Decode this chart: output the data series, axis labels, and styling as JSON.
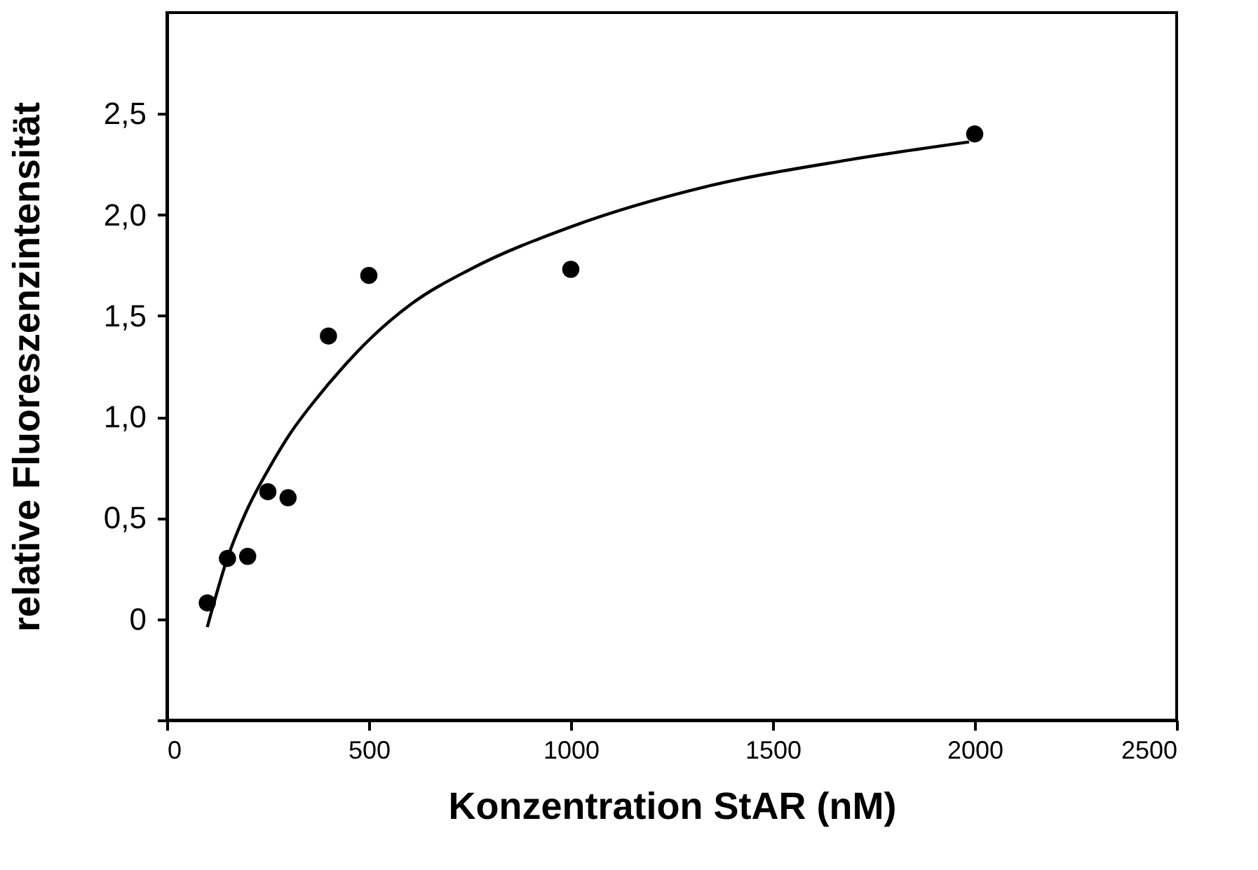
{
  "chart_data": {
    "type": "scatter",
    "xlabel": "Konzentration StAR (nM)",
    "ylabel": "relative Fluoreszenzintensität",
    "xlim": [
      0,
      2500
    ],
    "xticks": [
      0,
      500,
      1000,
      1500,
      2000,
      2500
    ],
    "ylim": [
      -0.5,
      3.0
    ],
    "yticks": [
      {
        "value": -0.5,
        "label": null
      },
      {
        "value": 0,
        "label": "0"
      },
      {
        "value": 0.5,
        "label": "0,5"
      },
      {
        "value": 1.0,
        "label": "1,0"
      },
      {
        "value": 1.5,
        "label": "1,5"
      },
      {
        "value": 2.0,
        "label": "2,0"
      },
      {
        "value": 2.5,
        "label": "2,5"
      }
    ],
    "grid": false,
    "marker": "circle",
    "series": [
      {
        "color": "#000000",
        "x": [
          100,
          150,
          200,
          250,
          300,
          400,
          500,
          1000,
          2000
        ],
        "values": [
          0.08,
          0.3,
          0.31,
          0.63,
          0.6,
          1.4,
          1.7,
          1.73,
          2.4
        ]
      },
      {
        "type": "line",
        "color": "#000000",
        "line_style": "solid",
        "marker": "none",
        "x": [
          100,
          148,
          196,
          257,
          306,
          366,
          438,
          500,
          606,
          751,
          1000,
          1337,
          1684,
          1986
        ],
        "values": [
          -0.04,
          0.29,
          0.53,
          0.76,
          0.92,
          1.08,
          1.25,
          1.38,
          1.56,
          1.73,
          1.94,
          2.14,
          2.27,
          2.36
        ]
      }
    ]
  }
}
